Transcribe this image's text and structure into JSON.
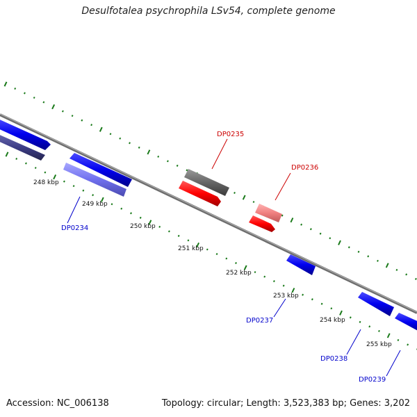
{
  "title": "Desulfotalea psychrophila LSv54, complete genome",
  "footer": {
    "accession": "Accession: NC_006138",
    "stats": "Topology: circular; Length: 3,523,383 bp; Genes: 3,202"
  },
  "ticks": [
    {
      "label": "248 kbp"
    },
    {
      "label": "249 kbp"
    },
    {
      "label": "250 kbp"
    },
    {
      "label": "251 kbp"
    },
    {
      "label": "252 kbp"
    },
    {
      "label": "253 kbp"
    },
    {
      "label": "254 kbp"
    },
    {
      "label": "255 kbp"
    }
  ],
  "genes": [
    {
      "label": "DP0234",
      "color": "#0000cc"
    },
    {
      "label": "DP0235",
      "color": "#cc0000"
    },
    {
      "label": "DP0236",
      "color": "#cc0000"
    },
    {
      "label": "DP0237",
      "color": "#0000cc"
    },
    {
      "label": "DP0238",
      "color": "#0000cc"
    },
    {
      "label": "DP0239",
      "color": "#0000cc"
    }
  ],
  "colors": {
    "backbone": "#888888",
    "tick_marks": "#1a7a1a",
    "forward_strand": "#0000ff",
    "reverse_strand": "#ff0000",
    "rna": "#606060"
  }
}
